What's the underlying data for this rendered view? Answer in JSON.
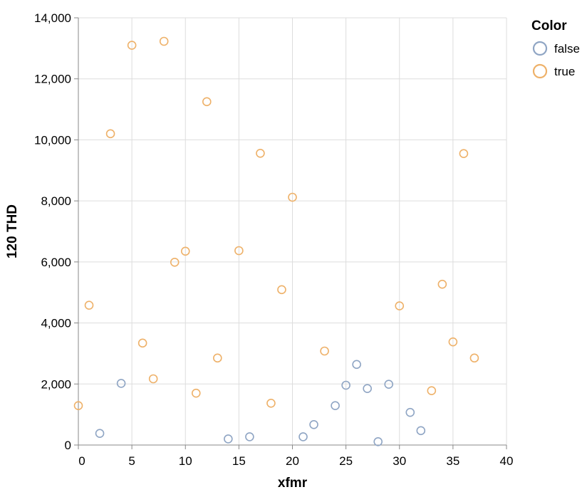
{
  "chart_data": {
    "type": "scatter",
    "xlabel": "xfmr",
    "ylabel": "120 THD",
    "xlim": [
      0,
      40
    ],
    "ylim": [
      0,
      14000
    ],
    "x_ticks": [
      0,
      5,
      10,
      15,
      20,
      25,
      30,
      35,
      40
    ],
    "y_ticks": [
      0,
      2000,
      4000,
      6000,
      8000,
      10000,
      12000,
      14000
    ],
    "x_tick_labels": [
      "0",
      "5",
      "10",
      "15",
      "20",
      "25",
      "30",
      "35",
      "40"
    ],
    "y_tick_labels": [
      "0",
      "2,000",
      "4,000",
      "6,000",
      "8,000",
      "10,000",
      "12,000",
      "14,000"
    ],
    "grid": true,
    "legend": {
      "title": "Color",
      "placement": "top-right",
      "entries": [
        {
          "label": "false",
          "color": "#8fa5c4"
        },
        {
          "label": "true",
          "color": "#eeb169"
        }
      ]
    },
    "series": [
      {
        "name": "false",
        "color": "#8fa5c4",
        "points": [
          {
            "x": 2,
            "y": 380
          },
          {
            "x": 4,
            "y": 2020
          },
          {
            "x": 14,
            "y": 200
          },
          {
            "x": 16,
            "y": 270
          },
          {
            "x": 21,
            "y": 270
          },
          {
            "x": 22,
            "y": 670
          },
          {
            "x": 24,
            "y": 1290
          },
          {
            "x": 25,
            "y": 1960
          },
          {
            "x": 26,
            "y": 2640
          },
          {
            "x": 27,
            "y": 1850
          },
          {
            "x": 28,
            "y": 110
          },
          {
            "x": 29,
            "y": 1990
          },
          {
            "x": 31,
            "y": 1070
          },
          {
            "x": 32,
            "y": 470
          }
        ]
      },
      {
        "name": "true",
        "color": "#eeb169",
        "points": [
          {
            "x": 0,
            "y": 1290
          },
          {
            "x": 1,
            "y": 4580
          },
          {
            "x": 3,
            "y": 10200
          },
          {
            "x": 5,
            "y": 13100
          },
          {
            "x": 6,
            "y": 3340
          },
          {
            "x": 7,
            "y": 2170
          },
          {
            "x": 8,
            "y": 13230
          },
          {
            "x": 9,
            "y": 5990
          },
          {
            "x": 10,
            "y": 6350
          },
          {
            "x": 11,
            "y": 1700
          },
          {
            "x": 12,
            "y": 11250
          },
          {
            "x": 13,
            "y": 2850
          },
          {
            "x": 15,
            "y": 6370
          },
          {
            "x": 17,
            "y": 9560
          },
          {
            "x": 18,
            "y": 1370
          },
          {
            "x": 19,
            "y": 5090
          },
          {
            "x": 20,
            "y": 8120
          },
          {
            "x": 23,
            "y": 3080
          },
          {
            "x": 30,
            "y": 4560
          },
          {
            "x": 33,
            "y": 1780
          },
          {
            "x": 34,
            "y": 5270
          },
          {
            "x": 35,
            "y": 3380
          },
          {
            "x": 36,
            "y": 9550
          },
          {
            "x": 37,
            "y": 2850
          }
        ]
      }
    ]
  }
}
